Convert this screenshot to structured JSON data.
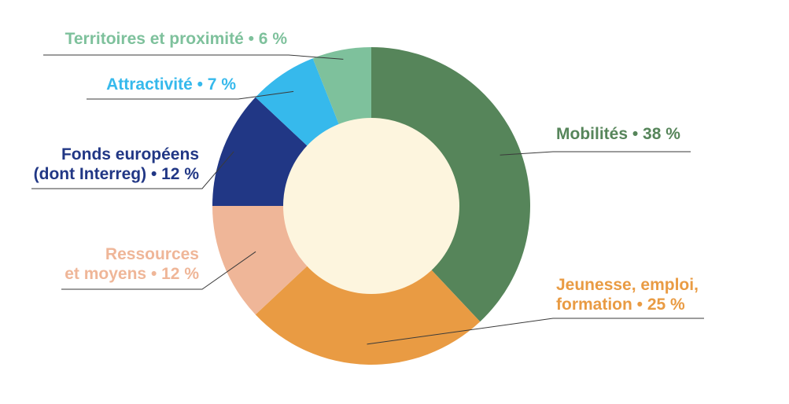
{
  "chart_data": {
    "type": "pie",
    "variant": "donut",
    "slices": [
      {
        "label_lines": [
          "Mobilités • 38 %"
        ],
        "value": 38,
        "color": "#56855a"
      },
      {
        "label_lines": [
          "Jeunesse, emploi,",
          "formation • 25 %"
        ],
        "value": 25,
        "color": "#e99b43"
      },
      {
        "label_lines": [
          "Ressources",
          "et moyens • 12 %"
        ],
        "value": 12,
        "color": "#efb698"
      },
      {
        "label_lines": [
          "Fonds européens",
          "(dont Interreg) • 12 %"
        ],
        "value": 12,
        "color": "#213785"
      },
      {
        "label_lines": [
          "Attractivité • 7 %"
        ],
        "value": 7,
        "color": "#36b9ec"
      },
      {
        "label_lines": [
          "Territoires et proximité • 6 %"
        ],
        "value": 6,
        "color": "#7ec19c"
      }
    ],
    "center_color": "#fdf5de",
    "leader_line_color": "#3a3a3a"
  }
}
